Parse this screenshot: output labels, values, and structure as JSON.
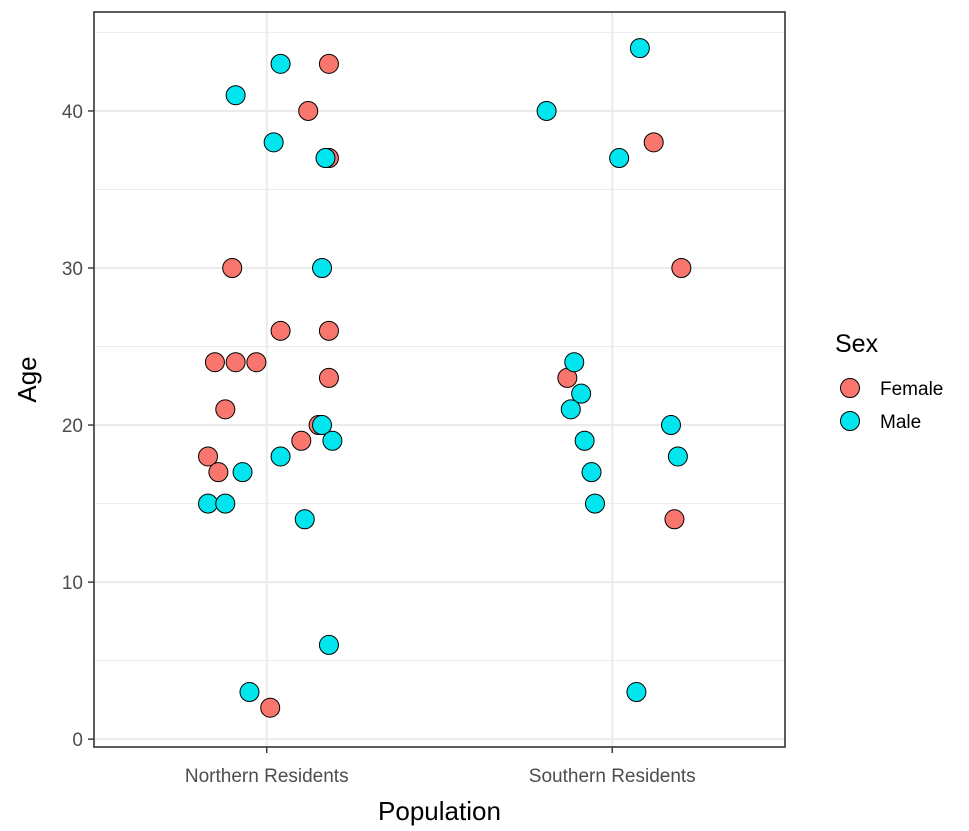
{
  "chart_data": {
    "type": "scatter",
    "title": "",
    "xlabel": "Population",
    "ylabel": "Age",
    "categories": [
      "Northern Residents",
      "Southern Residents"
    ],
    "ylim": [
      -0.5,
      46.3
    ],
    "yticks": [
      0,
      10,
      20,
      30,
      40
    ],
    "grid": true,
    "legend": {
      "title": "Sex",
      "position": "right",
      "entries": [
        "Female",
        "Male"
      ]
    },
    "colors": {
      "Female": "#f8766d",
      "Male": "#00e5ee",
      "stroke": "#000000",
      "grid": "#ebebeb"
    },
    "series": [
      {
        "name": "Female",
        "points": [
          {
            "x": "Northern Residents",
            "jitter": 0.18,
            "y": 43
          },
          {
            "x": "Northern Residents",
            "jitter": 0.12,
            "y": 40
          },
          {
            "x": "Northern Residents",
            "jitter": 0.18,
            "y": 37
          },
          {
            "x": "Northern Residents",
            "jitter": -0.1,
            "y": 30
          },
          {
            "x": "Northern Residents",
            "jitter": 0.04,
            "y": 26
          },
          {
            "x": "Northern Residents",
            "jitter": 0.18,
            "y": 26
          },
          {
            "x": "Northern Residents",
            "jitter": -0.15,
            "y": 24
          },
          {
            "x": "Northern Residents",
            "jitter": -0.09,
            "y": 24
          },
          {
            "x": "Northern Residents",
            "jitter": -0.03,
            "y": 24
          },
          {
            "x": "Northern Residents",
            "jitter": 0.18,
            "y": 23
          },
          {
            "x": "Northern Residents",
            "jitter": -0.12,
            "y": 21
          },
          {
            "x": "Northern Residents",
            "jitter": 0.15,
            "y": 20
          },
          {
            "x": "Northern Residents",
            "jitter": 0.1,
            "y": 19
          },
          {
            "x": "Northern Residents",
            "jitter": -0.17,
            "y": 18
          },
          {
            "x": "Northern Residents",
            "jitter": -0.14,
            "y": 17
          },
          {
            "x": "Northern Residents",
            "jitter": 0.01,
            "y": 2
          },
          {
            "x": "Southern Residents",
            "jitter": 0.12,
            "y": 38
          },
          {
            "x": "Southern Residents",
            "jitter": 0.2,
            "y": 30
          },
          {
            "x": "Southern Residents",
            "jitter": -0.13,
            "y": 23
          },
          {
            "x": "Southern Residents",
            "jitter": 0.18,
            "y": 14
          }
        ]
      },
      {
        "name": "Male",
        "points": [
          {
            "x": "Northern Residents",
            "jitter": 0.04,
            "y": 43
          },
          {
            "x": "Northern Residents",
            "jitter": -0.09,
            "y": 41
          },
          {
            "x": "Northern Residents",
            "jitter": 0.02,
            "y": 38
          },
          {
            "x": "Northern Residents",
            "jitter": 0.17,
            "y": 37
          },
          {
            "x": "Northern Residents",
            "jitter": 0.16,
            "y": 30
          },
          {
            "x": "Northern Residents",
            "jitter": 0.16,
            "y": 20
          },
          {
            "x": "Northern Residents",
            "jitter": 0.19,
            "y": 19
          },
          {
            "x": "Northern Residents",
            "jitter": 0.04,
            "y": 18
          },
          {
            "x": "Northern Residents",
            "jitter": -0.07,
            "y": 17
          },
          {
            "x": "Northern Residents",
            "jitter": -0.17,
            "y": 15
          },
          {
            "x": "Northern Residents",
            "jitter": -0.12,
            "y": 15
          },
          {
            "x": "Northern Residents",
            "jitter": 0.11,
            "y": 14
          },
          {
            "x": "Northern Residents",
            "jitter": 0.18,
            "y": 6
          },
          {
            "x": "Northern Residents",
            "jitter": -0.05,
            "y": 3
          },
          {
            "x": "Southern Residents",
            "jitter": 0.08,
            "y": 44
          },
          {
            "x": "Southern Residents",
            "jitter": -0.19,
            "y": 40
          },
          {
            "x": "Southern Residents",
            "jitter": 0.02,
            "y": 37
          },
          {
            "x": "Southern Residents",
            "jitter": -0.11,
            "y": 24
          },
          {
            "x": "Southern Residents",
            "jitter": -0.09,
            "y": 22
          },
          {
            "x": "Southern Residents",
            "jitter": -0.12,
            "y": 21
          },
          {
            "x": "Southern Residents",
            "jitter": 0.17,
            "y": 20
          },
          {
            "x": "Southern Residents",
            "jitter": -0.08,
            "y": 19
          },
          {
            "x": "Southern Residents",
            "jitter": 0.19,
            "y": 18
          },
          {
            "x": "Southern Residents",
            "jitter": -0.06,
            "y": 17
          },
          {
            "x": "Southern Residents",
            "jitter": -0.05,
            "y": 15
          },
          {
            "x": "Southern Residents",
            "jitter": 0.07,
            "y": 3
          }
        ]
      }
    ]
  }
}
